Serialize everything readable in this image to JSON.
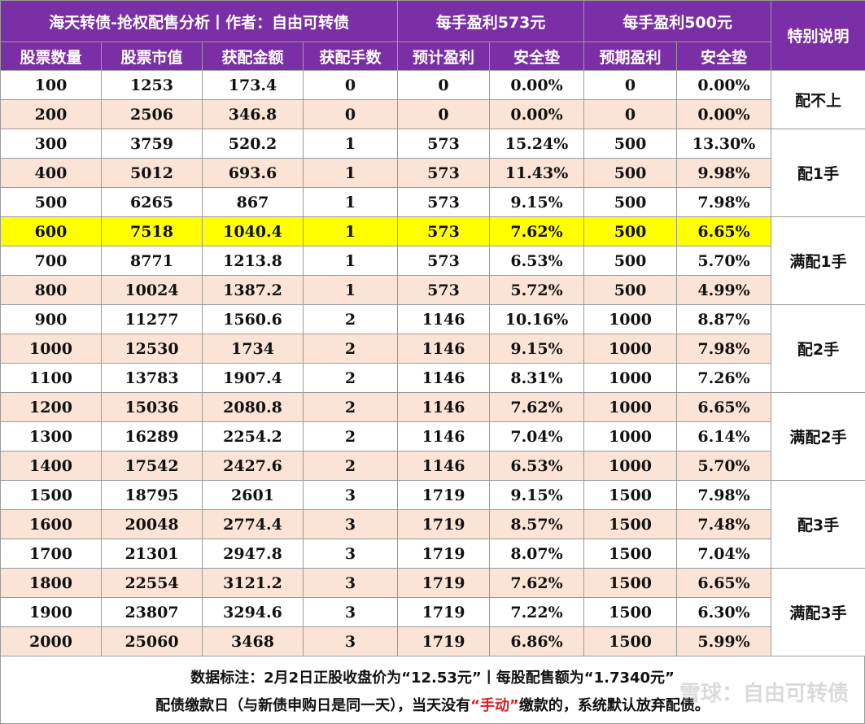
{
  "header": {
    "title": "海天转债-抢权配售分析丨作者：自由可转债",
    "group_573": "每手盈利573元",
    "group_500": "每手盈利500元",
    "note_header": "特别说明"
  },
  "columns": [
    "股票数量",
    "股票市值",
    "获配金额",
    "获配手数",
    "预计盈利",
    "安全垫",
    "预期盈利",
    "安全垫"
  ],
  "rows": [
    [
      "100",
      "1253",
      "173.4",
      "0",
      "0",
      "0.00%",
      "0",
      "0.00%"
    ],
    [
      "200",
      "2506",
      "346.8",
      "0",
      "0",
      "0.00%",
      "0",
      "0.00%"
    ],
    [
      "300",
      "3759",
      "520.2",
      "1",
      "573",
      "15.24%",
      "500",
      "13.30%"
    ],
    [
      "400",
      "5012",
      "693.6",
      "1",
      "573",
      "11.43%",
      "500",
      "9.98%"
    ],
    [
      "500",
      "6265",
      "867",
      "1",
      "573",
      "9.15%",
      "500",
      "7.98%"
    ],
    [
      "600",
      "7518",
      "1040.4",
      "1",
      "573",
      "7.62%",
      "500",
      "6.65%"
    ],
    [
      "700",
      "8771",
      "1213.8",
      "1",
      "573",
      "6.53%",
      "500",
      "5.70%"
    ],
    [
      "800",
      "10024",
      "1387.2",
      "1",
      "573",
      "5.72%",
      "500",
      "4.99%"
    ],
    [
      "900",
      "11277",
      "1560.6",
      "2",
      "1146",
      "10.16%",
      "1000",
      "8.87%"
    ],
    [
      "1000",
      "12530",
      "1734",
      "2",
      "1146",
      "9.15%",
      "1000",
      "7.98%"
    ],
    [
      "1100",
      "13783",
      "1907.4",
      "2",
      "1146",
      "8.31%",
      "1000",
      "7.26%"
    ],
    [
      "1200",
      "15036",
      "2080.8",
      "2",
      "1146",
      "7.62%",
      "1000",
      "6.65%"
    ],
    [
      "1300",
      "16289",
      "2254.2",
      "2",
      "1146",
      "7.04%",
      "1000",
      "6.14%"
    ],
    [
      "1400",
      "17542",
      "2427.6",
      "2",
      "1146",
      "6.53%",
      "1000",
      "5.70%"
    ],
    [
      "1500",
      "18795",
      "2601",
      "3",
      "1719",
      "9.15%",
      "1500",
      "7.98%"
    ],
    [
      "1600",
      "20048",
      "2774.4",
      "3",
      "1719",
      "8.57%",
      "1500",
      "7.48%"
    ],
    [
      "1700",
      "21301",
      "2947.8",
      "3",
      "1719",
      "8.07%",
      "1500",
      "7.04%"
    ],
    [
      "1800",
      "22554",
      "3121.2",
      "3",
      "1719",
      "7.62%",
      "1500",
      "6.65%"
    ],
    [
      "1900",
      "23807",
      "3294.6",
      "3",
      "1719",
      "7.22%",
      "1500",
      "6.30%"
    ],
    [
      "2000",
      "25060",
      "3468",
      "3",
      "1719",
      "6.86%",
      "1500",
      "5.99%"
    ]
  ],
  "highlight_row": "600",
  "notes": [
    {
      "label": "配不上",
      "start": 0,
      "span": 2
    },
    {
      "label": "配1手",
      "start": 2,
      "span": 3
    },
    {
      "label": "满配1手",
      "start": 5,
      "span": 3
    },
    {
      "label": "配2手",
      "start": 8,
      "span": 3
    },
    {
      "label": "满配2手",
      "start": 11,
      "span": 3
    },
    {
      "label": "配3手",
      "start": 14,
      "span": 3
    },
    {
      "label": "满配3手",
      "start": 17,
      "span": 3
    }
  ],
  "footer": {
    "line1": "数据标注：2月2日正股收盘价为“12.53元”丨每股配售额为“1.7340元”",
    "line2_a": "配债缴款日（与新债申购日是同一天），当天没有",
    "line2_red": "“手动”",
    "line2_b": "缴款的，系统默认放弃配债。"
  },
  "watermark": "雪球：自由可转债",
  "colors": {
    "header_bg": "#7b2fa6",
    "row_alt": "#fbe4d5",
    "highlight": "#ffff00",
    "footer_red": "#e01f1f"
  }
}
